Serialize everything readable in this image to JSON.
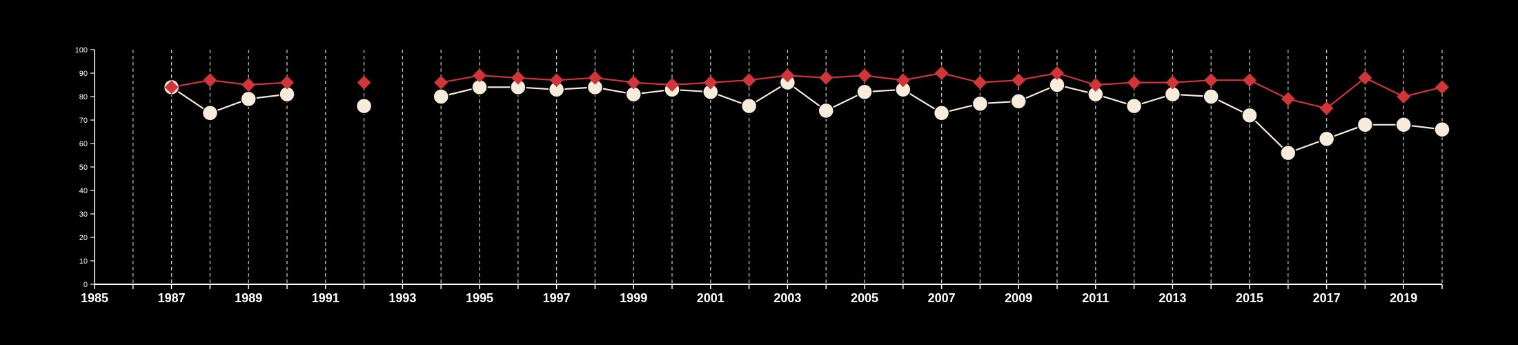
{
  "chart_data": {
    "type": "line",
    "title": "",
    "xlabel": "",
    "ylabel": "",
    "xlim": [
      1985,
      2020
    ],
    "ylim": [
      0,
      100
    ],
    "x_ticks": [
      1985,
      1987,
      1989,
      1991,
      1993,
      1995,
      1997,
      1999,
      2001,
      2003,
      2005,
      2007,
      2009,
      2011,
      2013,
      2015,
      2017,
      2019
    ],
    "y_ticks": [
      0,
      10,
      20,
      30,
      40,
      50,
      60,
      70,
      80,
      90,
      100
    ],
    "grid": "vertical dashed lines at each year",
    "background": "#000000",
    "series": [
      {
        "marker": "diamond",
        "color": "#d0353a",
        "data": [
          {
            "x": 1987,
            "y": 84
          },
          {
            "x": 1988,
            "y": 87
          },
          {
            "x": 1989,
            "y": 85
          },
          {
            "x": 1990,
            "y": 86
          },
          {
            "x": 1992,
            "y": 86
          },
          {
            "x": 1994,
            "y": 86
          },
          {
            "x": 1995,
            "y": 89
          },
          {
            "x": 1996,
            "y": 88
          },
          {
            "x": 1997,
            "y": 87
          },
          {
            "x": 1998,
            "y": 88
          },
          {
            "x": 1999,
            "y": 86
          },
          {
            "x": 2000,
            "y": 85
          },
          {
            "x": 2001,
            "y": 86
          },
          {
            "x": 2002,
            "y": 87
          },
          {
            "x": 2003,
            "y": 89
          },
          {
            "x": 2004,
            "y": 88
          },
          {
            "x": 2005,
            "y": 89
          },
          {
            "x": 2006,
            "y": 87
          },
          {
            "x": 2007,
            "y": 90
          },
          {
            "x": 2008,
            "y": 86
          },
          {
            "x": 2009,
            "y": 87
          },
          {
            "x": 2010,
            "y": 90
          },
          {
            "x": 2011,
            "y": 85
          },
          {
            "x": 2012,
            "y": 86
          },
          {
            "x": 2013,
            "y": 86
          },
          {
            "x": 2014,
            "y": 87
          },
          {
            "x": 2015,
            "y": 87
          },
          {
            "x": 2016,
            "y": 79
          },
          {
            "x": 2017,
            "y": 75
          },
          {
            "x": 2018,
            "y": 88
          },
          {
            "x": 2019,
            "y": 80
          },
          {
            "x": 2020,
            "y": 84
          }
        ]
      },
      {
        "marker": "circle",
        "color": "#f7ecdc",
        "data": [
          {
            "x": 1987,
            "y": 84
          },
          {
            "x": 1988,
            "y": 73
          },
          {
            "x": 1989,
            "y": 79
          },
          {
            "x": 1990,
            "y": 81
          },
          {
            "x": 1992,
            "y": 76
          },
          {
            "x": 1994,
            "y": 80
          },
          {
            "x": 1995,
            "y": 84
          },
          {
            "x": 1996,
            "y": 84
          },
          {
            "x": 1997,
            "y": 83
          },
          {
            "x": 1998,
            "y": 84
          },
          {
            "x": 1999,
            "y": 81
          },
          {
            "x": 2000,
            "y": 83
          },
          {
            "x": 2001,
            "y": 82
          },
          {
            "x": 2002,
            "y": 76
          },
          {
            "x": 2003,
            "y": 86
          },
          {
            "x": 2004,
            "y": 74
          },
          {
            "x": 2005,
            "y": 82
          },
          {
            "x": 2006,
            "y": 83
          },
          {
            "x": 2007,
            "y": 73
          },
          {
            "x": 2008,
            "y": 77
          },
          {
            "x": 2009,
            "y": 78
          },
          {
            "x": 2010,
            "y": 85
          },
          {
            "x": 2011,
            "y": 81
          },
          {
            "x": 2012,
            "y": 76
          },
          {
            "x": 2013,
            "y": 81
          },
          {
            "x": 2014,
            "y": 80
          },
          {
            "x": 2015,
            "y": 72
          },
          {
            "x": 2016,
            "y": 56
          },
          {
            "x": 2017,
            "y": 62
          },
          {
            "x": 2018,
            "y": 68
          },
          {
            "x": 2019,
            "y": 68
          },
          {
            "x": 2020,
            "y": 66
          }
        ]
      }
    ]
  }
}
